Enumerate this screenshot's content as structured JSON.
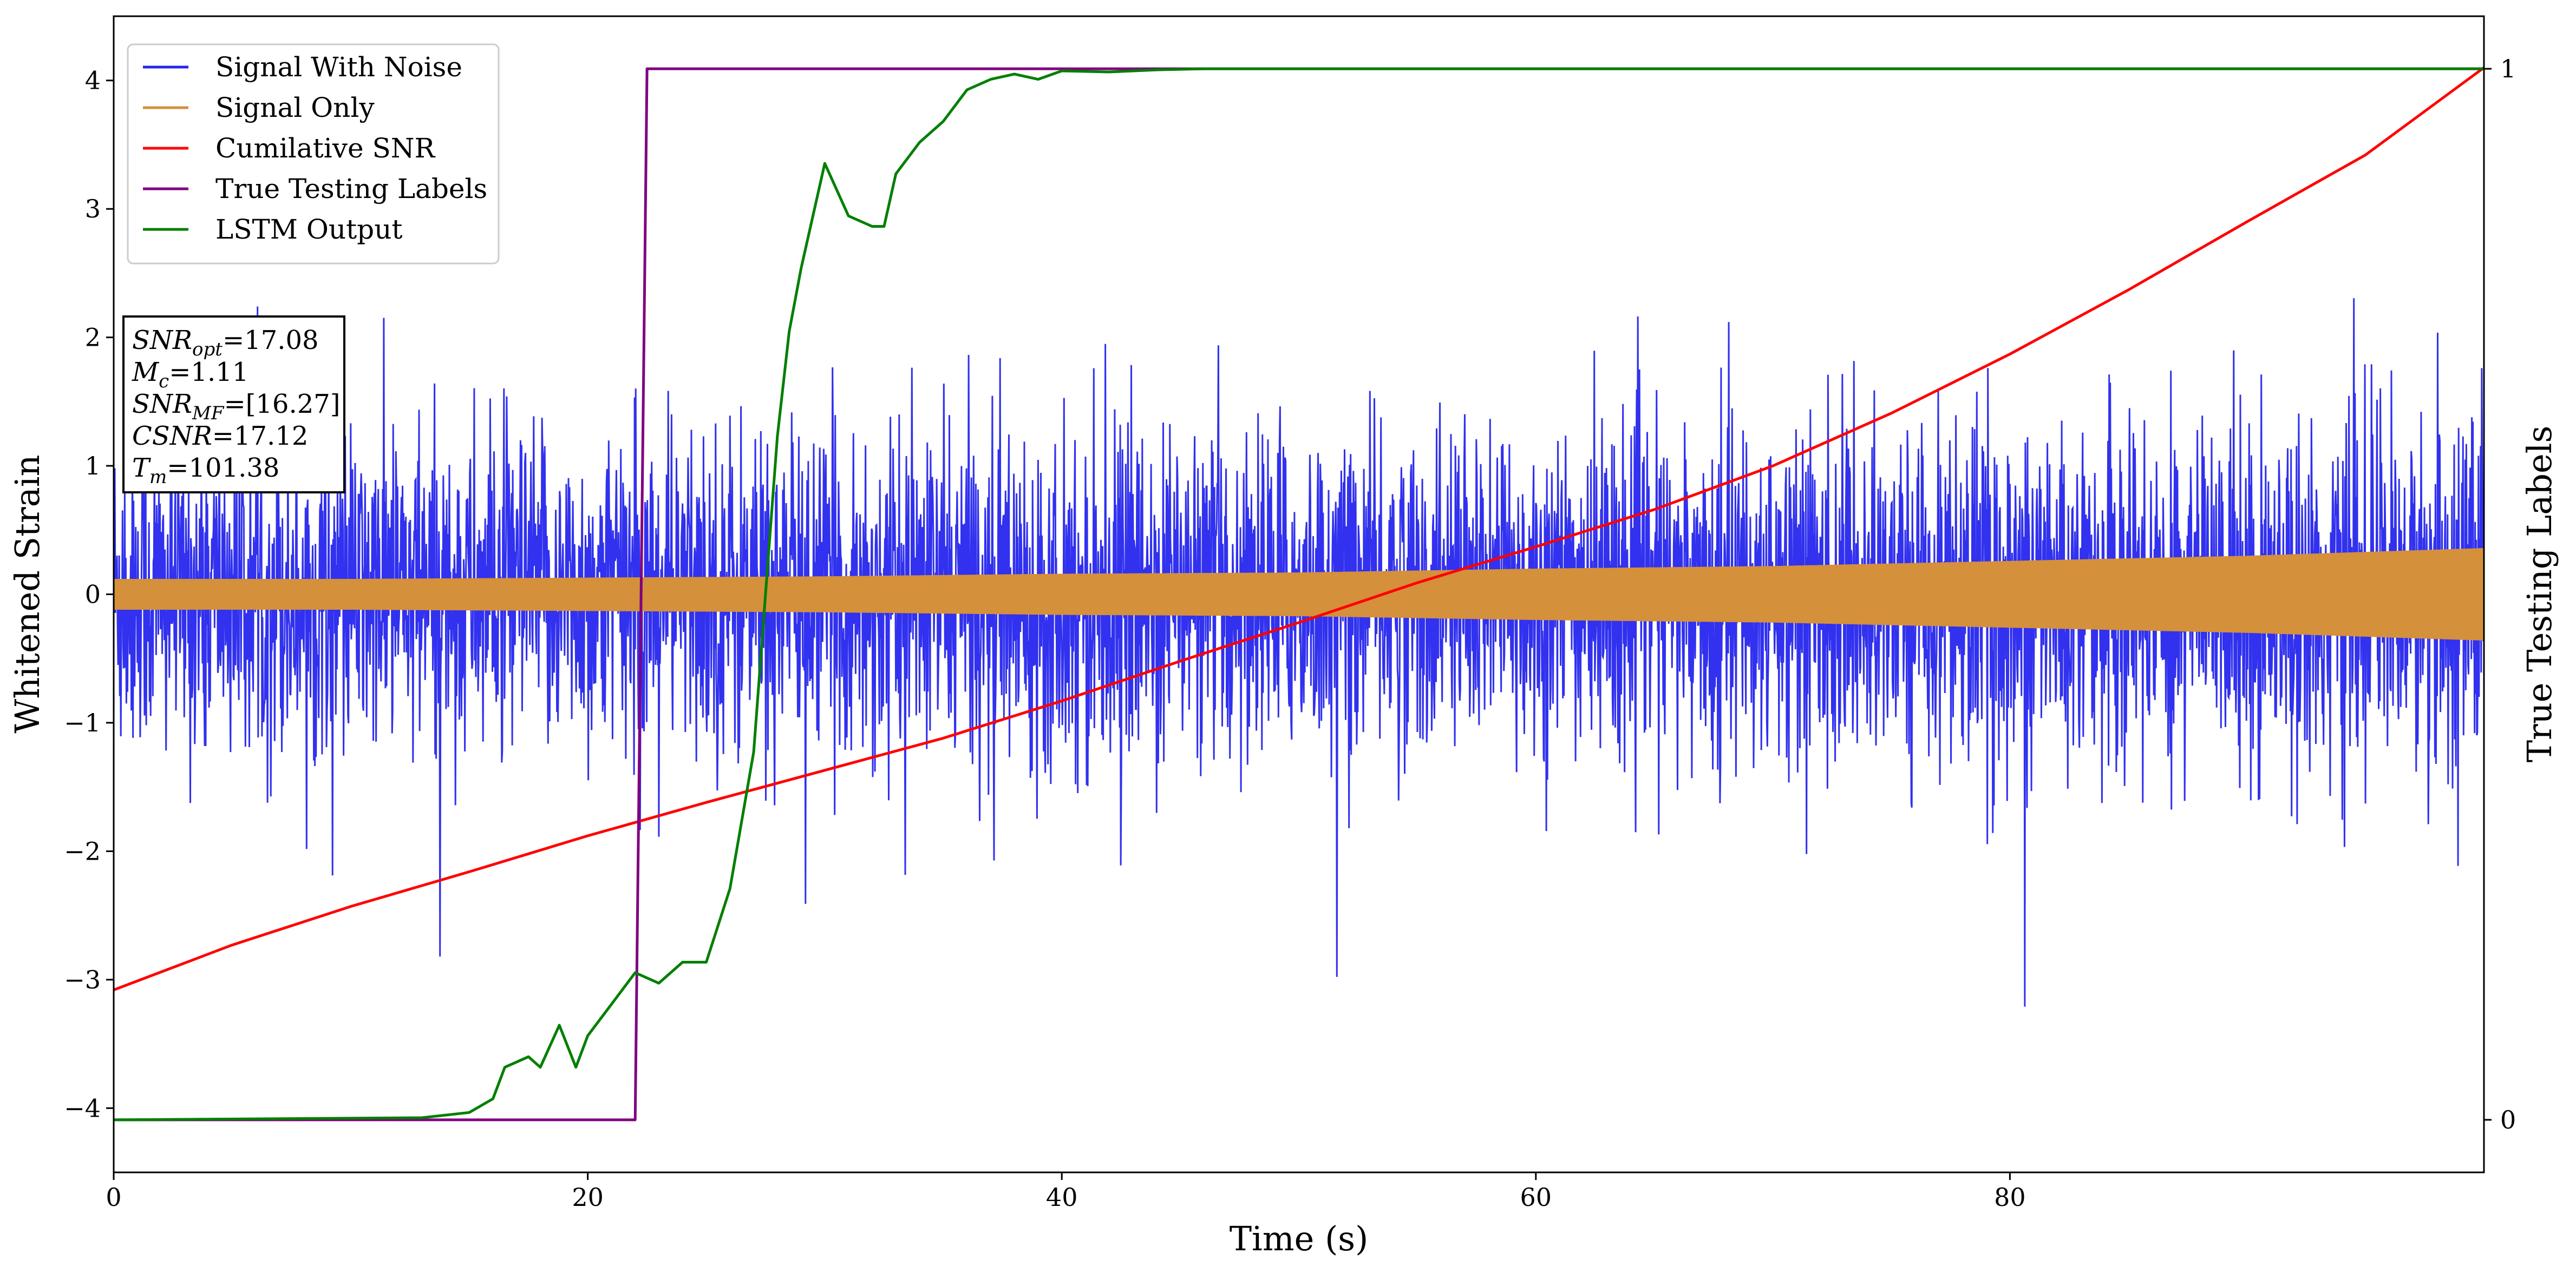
{
  "chart_data": {
    "type": "line",
    "xlabel": "Time (s)",
    "ylabel_left": "Whitened Strain",
    "ylabel_right": "True Testing Labels",
    "xlim": [
      0,
      100
    ],
    "ylim_left": [
      -4.5,
      4.5
    ],
    "ylim_right": [
      -0.05,
      1.05
    ],
    "x_ticks": [
      0,
      20,
      40,
      60,
      80
    ],
    "y_left_ticks": [
      -4,
      -3,
      -2,
      -1,
      0,
      1,
      2,
      3,
      4
    ],
    "y_right_ticks": [
      0,
      1
    ],
    "legend_position": "upper left",
    "grid": false,
    "series": [
      {
        "name": "Signal With Noise",
        "axis": "left",
        "color": "#2626ee",
        "description_values": "noisy strain, dense oscillation roughly within [-3.5, 4.1], occasional spikes"
      },
      {
        "name": "Signal Only",
        "axis": "left",
        "color": "#d4903a",
        "envelope": {
          "x": [
            0,
            10,
            20,
            30,
            40,
            50,
            60,
            70,
            80,
            90,
            100
          ],
          "amplitude": [
            0.12,
            0.12,
            0.13,
            0.14,
            0.16,
            0.17,
            0.2,
            0.22,
            0.26,
            0.3,
            0.36
          ]
        }
      },
      {
        "name": "Cumilative SNR",
        "axis": "left",
        "color": "#ff0000",
        "x": [
          0,
          5,
          10,
          15,
          20,
          25,
          30,
          35,
          40,
          45,
          50,
          55,
          60,
          65,
          70,
          75,
          80,
          85,
          90,
          95,
          100
        ],
        "y": [
          -3.08,
          -2.73,
          -2.43,
          -2.16,
          -1.88,
          -1.62,
          -1.37,
          -1.12,
          -0.83,
          -0.52,
          -0.22,
          0.09,
          0.37,
          0.66,
          1.0,
          1.41,
          1.87,
          2.37,
          2.9,
          3.42,
          4.1
        ]
      },
      {
        "name": "True Testing Labels",
        "axis": "right",
        "color": "#800080",
        "x": [
          0,
          22.0,
          22.5,
          100
        ],
        "y": [
          0,
          0,
          1,
          1
        ]
      },
      {
        "name": "LSTM Output",
        "axis": "right",
        "color": "#007f00",
        "x": [
          0,
          13,
          15,
          16,
          16.5,
          17.5,
          18,
          18.8,
          19.5,
          20,
          21,
          22,
          23,
          24,
          25,
          26,
          27,
          28,
          28.5,
          29,
          30,
          31,
          32,
          32.5,
          33,
          34,
          35,
          36,
          37,
          38,
          39,
          40,
          42,
          44,
          46,
          50,
          60,
          80,
          100
        ],
        "y": [
          0,
          0.002,
          0.007,
          0.02,
          0.05,
          0.06,
          0.05,
          0.09,
          0.05,
          0.08,
          0.11,
          0.14,
          0.13,
          0.15,
          0.15,
          0.22,
          0.35,
          0.65,
          0.75,
          0.81,
          0.91,
          0.86,
          0.85,
          0.85,
          0.9,
          0.93,
          0.95,
          0.98,
          0.99,
          0.995,
          0.99,
          0.998,
          0.997,
          0.999,
          1.0,
          1.0,
          1.0,
          1.0,
          1.0
        ]
      }
    ],
    "legend": [
      "Signal With Noise",
      "Signal Only",
      "Cumilative SNR",
      "True Testing Labels",
      "LSTM Output"
    ],
    "info_box": [
      {
        "var": "SNR",
        "sub": "opt",
        "value": "=17.08"
      },
      {
        "var": "M",
        "sub": "c",
        "value": "=1.11"
      },
      {
        "var": "SNR",
        "sub": "MF",
        "value": "=[16.27]"
      },
      {
        "var": "CSNR",
        "sub": "",
        "value": "=17.12"
      },
      {
        "var": "T",
        "sub": "m",
        "value": "=101.38"
      }
    ]
  }
}
